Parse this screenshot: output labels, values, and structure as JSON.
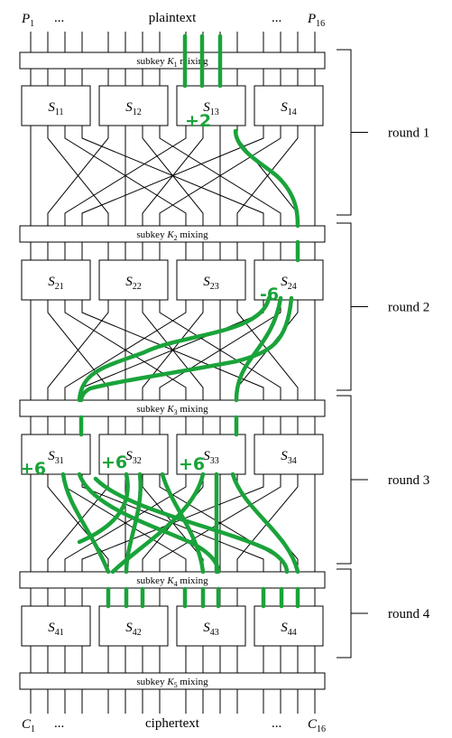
{
  "header": {
    "p_first": "P",
    "p_first_sub": "1",
    "dots_left": "...",
    "title": "plaintext",
    "dots_right": "...",
    "p_last": "P",
    "p_last_sub": "16"
  },
  "footer": {
    "c_first": "C",
    "c_first_sub": "1",
    "dots_left": "...",
    "title": "ciphertext",
    "dots_right": "...",
    "c_last": "C",
    "c_last_sub": "16"
  },
  "mixing": [
    {
      "pre": "subkey ",
      "k": "K",
      "sub": "1",
      "post": " mixing"
    },
    {
      "pre": "subkey ",
      "k": "K",
      "sub": "2",
      "post": " mixing"
    },
    {
      "pre": "subkey ",
      "k": "K",
      "sub": "3",
      "post": " mixing"
    },
    {
      "pre": "subkey ",
      "k": "K",
      "sub": "4",
      "post": " mixing"
    },
    {
      "pre": "subkey ",
      "k": "K",
      "sub": "5",
      "post": " mixing"
    }
  ],
  "sboxes": [
    [
      {
        "s": "S",
        "sub": "11"
      },
      {
        "s": "S",
        "sub": "12"
      },
      {
        "s": "S",
        "sub": "13"
      },
      {
        "s": "S",
        "sub": "14"
      }
    ],
    [
      {
        "s": "S",
        "sub": "21"
      },
      {
        "s": "S",
        "sub": "22"
      },
      {
        "s": "S",
        "sub": "23"
      },
      {
        "s": "S",
        "sub": "24"
      }
    ],
    [
      {
        "s": "S",
        "sub": "31"
      },
      {
        "s": "S",
        "sub": "32"
      },
      {
        "s": "S",
        "sub": "33"
      },
      {
        "s": "S",
        "sub": "34"
      }
    ],
    [
      {
        "s": "S",
        "sub": "41"
      },
      {
        "s": "S",
        "sub": "42"
      },
      {
        "s": "S",
        "sub": "43"
      },
      {
        "s": "S",
        "sub": "44"
      }
    ]
  ],
  "rounds": [
    "round 1",
    "round 2",
    "round 3",
    "round 4"
  ],
  "annotations": [
    "+2",
    "-6",
    "+6",
    "+6",
    "+6"
  ],
  "colors": {
    "ink": "#000000",
    "annotation": "#1aa33a"
  }
}
